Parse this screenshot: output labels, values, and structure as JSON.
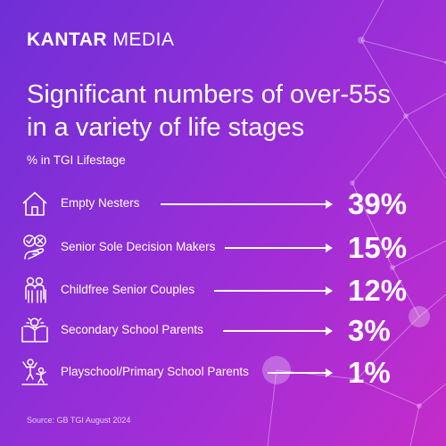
{
  "brand": {
    "bold": "KANTAR",
    "light": "MEDIA"
  },
  "title_line1": "Significant numbers of over-55s",
  "title_line2": "in a variety of life stages",
  "subtitle": "% in TGI Lifestage",
  "source": "Source: GB TGI August 2024",
  "colors": {
    "background_start": "#6f2fd6",
    "background_end": "#c42cc9",
    "text": "#ffffff"
  },
  "rows": [
    {
      "label": "Empty Nesters",
      "value_label": "39%",
      "icon": "house-icon"
    },
    {
      "label": "Senior Sole Decision Makers",
      "value_label": "15%",
      "icon": "decision-hand-icon"
    },
    {
      "label": "Childfree Senior Couples",
      "value_label": "12%",
      "icon": "senior-couple-icon"
    },
    {
      "label": "Secondary School Parents",
      "value_label": "3%",
      "icon": "book-lightbulb-icon"
    },
    {
      "label": "Playschool/Primary School Parents",
      "value_label": "1%",
      "icon": "playing-children-icon"
    }
  ],
  "chart_data": {
    "type": "table",
    "title": "Significant numbers of over-55s in a variety of life stages",
    "subtitle": "% in TGI Lifestage",
    "categories": [
      "Empty Nesters",
      "Senior Sole Decision Makers",
      "Childfree Senior Couples",
      "Secondary School Parents",
      "Playschool/Primary School Parents"
    ],
    "values": [
      39,
      15,
      12,
      3,
      1
    ],
    "unit": "%"
  }
}
